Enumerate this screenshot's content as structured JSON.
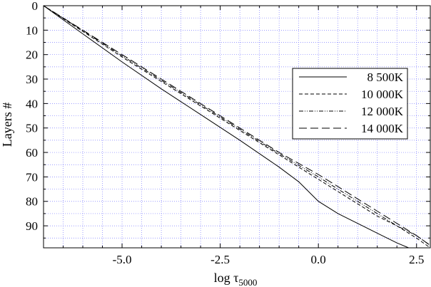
{
  "chart_data": {
    "type": "line",
    "xlabel": "log τ",
    "xlabel_subscript": "5000",
    "ylabel": "Layers #",
    "xlim": [
      -7.0,
      2.85
    ],
    "ylim": [
      0,
      99
    ],
    "y_inverted": true,
    "x_ticks": [
      -5.0,
      -2.5,
      0.0,
      2.5
    ],
    "x_tick_labels": [
      "-5.0",
      "-2.5",
      "0.0",
      "2.5"
    ],
    "y_ticks": [
      0,
      10,
      20,
      30,
      40,
      50,
      60,
      70,
      80,
      90
    ],
    "y_tick_labels": [
      "0",
      "10",
      "20",
      "30",
      "40",
      "50",
      "60",
      "70",
      "80",
      "90"
    ],
    "grid": true,
    "legend_position": "right",
    "series": [
      {
        "name": "8 500K",
        "style": "solid",
        "x": [
          -7.0,
          -6.0,
          -5.0,
          -4.0,
          -3.0,
          -2.0,
          -1.0,
          -0.5,
          0.0,
          0.5,
          1.0,
          1.5,
          2.0,
          2.3
        ],
        "y": [
          0,
          11.5,
          23,
          34,
          44.5,
          55,
          66,
          72,
          80,
          85,
          89,
          93,
          97,
          99
        ]
      },
      {
        "name": "10 000K",
        "style": "dashed",
        "x": [
          -7.0,
          -6.0,
          -5.0,
          -4.0,
          -3.0,
          -2.0,
          -1.0,
          0.0,
          0.5,
          1.0,
          1.5,
          2.0,
          2.5,
          2.85
        ],
        "y": [
          0,
          10.5,
          21,
          31,
          41,
          51,
          61,
          71,
          76,
          81,
          86,
          90,
          95,
          99
        ]
      },
      {
        "name": "12 000K",
        "style": "dash-dot-dot",
        "x": [
          -7.0,
          -6.0,
          -5.0,
          -4.0,
          -3.0,
          -2.0,
          -1.0,
          0.0,
          0.5,
          1.0,
          1.5,
          2.0,
          2.5,
          2.85
        ],
        "y": [
          0,
          10.2,
          20.5,
          30.5,
          40.5,
          50.5,
          60.5,
          70,
          75,
          80,
          85,
          90,
          94,
          98
        ]
      },
      {
        "name": "14 000K",
        "style": "long-dash",
        "x": [
          -7.0,
          -6.0,
          -5.0,
          -4.0,
          -3.0,
          -2.0,
          -1.0,
          0.0,
          0.5,
          1.0,
          1.5,
          2.0,
          2.5,
          2.85
        ],
        "y": [
          0,
          10,
          20,
          30,
          40,
          50,
          60,
          69,
          74,
          79,
          84,
          89,
          94,
          98
        ]
      }
    ]
  }
}
